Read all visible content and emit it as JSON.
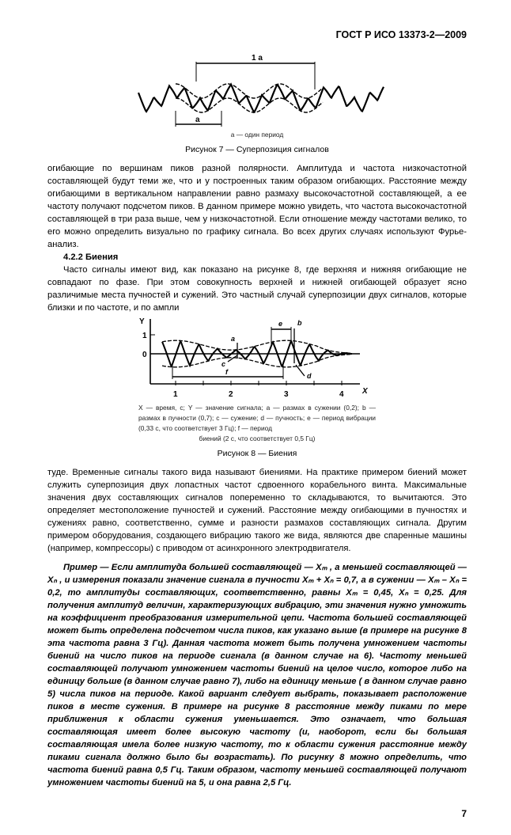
{
  "header": {
    "doc_id": "ГОСТ Р ИСО 13373-2—2009"
  },
  "figure7": {
    "label_1a": "1 a",
    "label_a": "a",
    "legend": "a — один период",
    "caption": "Рисунок 7 — Суперпозиция сигналов"
  },
  "paragraphs": {
    "p1": "огибающие по вершинам пиков разной полярности. Амплитуда и частота низкочастотной составляющей будут теми же, что и у построенных таким образом огибающих. Расстояние между огибающими в вертикальном направлении равно размаху высокочастотной составляющей, а ее частоту получают подсчетом пиков. В данном примере можно увидеть, что частота высокочастотной составляющей в три раза выше, чем у низкочастотной. Если отношение между частотами велико, то его можно определить визуально по графику сигнала. Во всех других случаях используют Фурье-анализ.",
    "heading": "4.2.2 Биения",
    "p2": "Часто сигналы имеют вид, как показано на рисунке 8, где верхняя и нижняя огибающие  не совпадают по фазе. При этом совокупность верхней и нижней огибающей образует ясно различимые места пучностей и сужений. Это частный случай суперпозиции двух сигналов, которые близки и по частоте, и по амплитуде. Временные сигналы такого вида называют биениями. На практике примером биений может служить суперпозиция двух лопастных частот сдвоенного корабельного винта. Максимальные значения двух составляющих сигналов попеременно то складываются, то вычитаются. Это определяет местоположение пучностей и сужений. Расстояние между огибающими в пучностях и сужениях равно, соответственно, сумме и разности размахов составляющих сигнала. Другим примером оборудования, создающего вибрацию такого же вида, являются две спаренные машины (например, компрессоры) с приводом от асинхронного электродвигателя.",
    "example": "Пример — Если амплитуда большей составляющей — Xₘ , а меньшей составляющей — Xₙ , и измерения показали значение сигнала в пучности Xₘ + Xₙ = 0,7, а в сужении — Xₘ – Xₙ = 0,2, то амплитуды составляющих, соответственно, равны Xₘ = 0,45, Xₙ = 0,25. Для получения амплитуд величин, характеризующих вибрацию, эти значения нужно умножить на коэффициент преобразования измерительной цепи.  Частота большей составляющей может быть определена подсчетом числа пиков, как указано выше (в примере на рисунке 8 эта частота равна 3 Гц). Данная частота может быть получена умножением частоты биений на число пиков на периоде сигнала (в данном случае на 6). Частоту меньшей составляющей получают умножением частоты биений на целое число, которое либо на единицу больше (в данном случае равно 7), либо на единицу меньше ( в данном случае равно 5) числа пиков на периоде. Какой вариант следует выбрать, показывает расположение пиков в месте сужения. В примере на рисунке 8 расстояние между пиками по мере приближения к области сужения уменьшается. Это означает, что большая составляющая имеет более высокую частоту (и, наоборот, если бы большая составляющая имела более низкую частоту, то к области сужения расстояние между пиками сигнала должно было бы возрастать). По рисунку 8 можно определить, что частота биений равна 0,5 Гц. Таким образом, частоту меньшей составляющей получают умножением частоты биений на 5, и она равна 2,5 Гц."
  },
  "figure8": {
    "y_axis": "Y",
    "x_axis": "X",
    "y_ticks": [
      "0",
      "1"
    ],
    "x_ticks": [
      "1",
      "2",
      "3",
      "4"
    ],
    "labels": {
      "a": "a",
      "b": "b",
      "c": "c",
      "d": "d",
      "e": "e",
      "f": "f"
    },
    "legend_1": "X — время, с; Y — значение сигнала; a — размах в сужении (0,2); b — размах в пучности (0,7); c — сужение; d — пучность; e — период вибрации (0,33 с, что соответствует 3 Гц); f — период",
    "legend_2": "биений (2 с, что соответствует 0,5 Гц)",
    "caption": "Рисунок 8 — Биения"
  },
  "page_number": "7"
}
